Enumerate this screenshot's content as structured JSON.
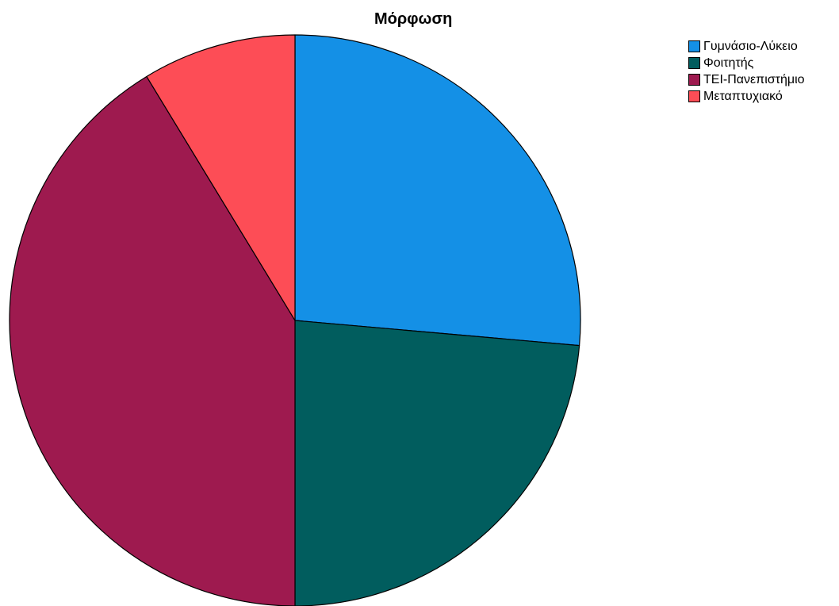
{
  "chart_data": {
    "type": "pie",
    "title": "Μόρφωση",
    "categories": [
      "Γυμνάσιο-Λύκειο",
      "Φοιτητής",
      "ΤΕΙ-Πανεπιστήμιο",
      "Μεταπτυχιακό"
    ],
    "values": [
      26.4,
      23.6,
      41.3,
      8.7
    ],
    "colors": [
      "#1490e6",
      "#015d5e",
      "#9e1a4f",
      "#fd4d56"
    ],
    "start_angle": "12 o'clock",
    "direction": "clockwise",
    "legend": "top-right",
    "legend_entries": [
      {
        "label": "Γυμνάσιο-Λύκειο",
        "color": "#1490e6"
      },
      {
        "label": "Φοιτητής",
        "color": "#015d5e"
      },
      {
        "label": "ΤΕΙ-Πανεπιστήμιο",
        "color": "#9e1a4f"
      },
      {
        "label": "Μεταπτυχιακό",
        "color": "#fd4d56"
      }
    ]
  }
}
